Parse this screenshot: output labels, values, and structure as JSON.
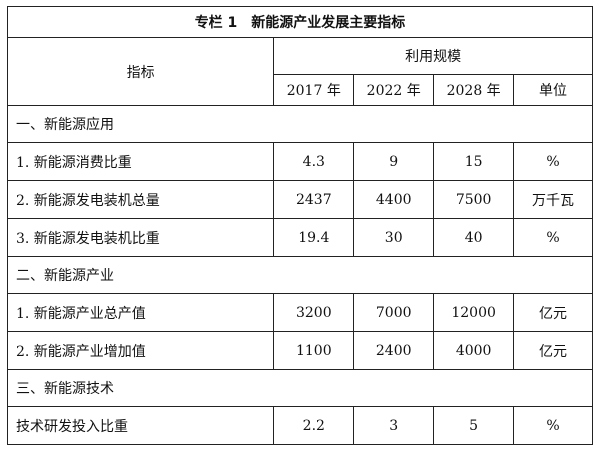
{
  "title": "专栏 1　新能源产业发展主要指标",
  "header": {
    "indicator": "指标",
    "scale": "利用规模",
    "years": [
      "2017 年",
      "2022 年",
      "2028 年"
    ],
    "unit": "单位"
  },
  "sections": [
    {
      "label": "一、新能源应用",
      "rows": [
        {
          "name": "1. 新能源消费比重",
          "values": [
            "4.3",
            "9",
            "15"
          ],
          "unit": "%"
        },
        {
          "name": "2. 新能源发电装机总量",
          "values": [
            "2437",
            "4400",
            "7500"
          ],
          "unit": "万千瓦"
        },
        {
          "name": "3. 新能源发电装机比重",
          "values": [
            "19.4",
            "30",
            "40"
          ],
          "unit": "%"
        }
      ]
    },
    {
      "label": "二、新能源产业",
      "rows": [
        {
          "name": "1. 新能源产业总产值",
          "values": [
            "3200",
            "7000",
            "12000"
          ],
          "unit": "亿元"
        },
        {
          "name": "2. 新能源产业增加值",
          "values": [
            "1100",
            "2400",
            "4000"
          ],
          "unit": "亿元"
        }
      ]
    },
    {
      "label": "三、新能源技术",
      "rows": [
        {
          "name": "技术研发投入比重",
          "values": [
            "2.2",
            "3",
            "5"
          ],
          "unit": "%"
        }
      ]
    }
  ]
}
